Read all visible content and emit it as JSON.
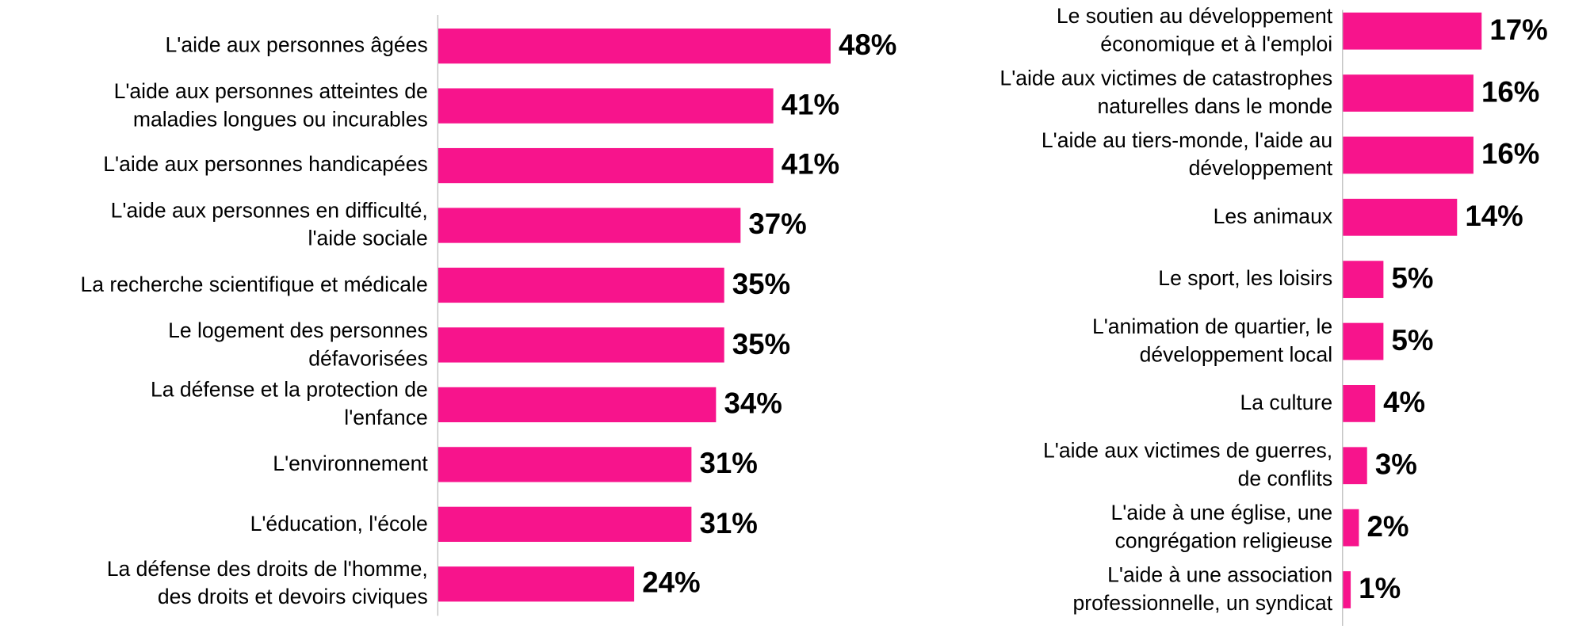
{
  "chart_data": [
    {
      "type": "hbar",
      "color": "#f7148c",
      "xlim": [
        0,
        60
      ],
      "categories": [
        "L'aide aux personnes âgées",
        "L'aide aux personnes atteintes de\nmaladies longues ou incurables",
        "L'aide aux personnes handicapées",
        "L'aide aux personnes en difficulté,\nl'aide sociale",
        "La recherche scientifique et médicale",
        "Le logement des personnes\ndéfavorisées",
        "La défense et la protection de\nl'enfance",
        "L'environnement",
        "L'éducation, l'école",
        "La défense des droits de l'homme,\ndes droits et devoirs civiques"
      ],
      "values": [
        48,
        41,
        41,
        37,
        35,
        35,
        34,
        31,
        31,
        24
      ],
      "value_labels": [
        "48%",
        "41%",
        "41%",
        "37%",
        "35%",
        "35%",
        "34%",
        "31%",
        "31%",
        "24%"
      ]
    },
    {
      "type": "hbar",
      "color": "#f7148c",
      "xlim": [
        0,
        60
      ],
      "categories": [
        "Le soutien au développement\néconomique et à l'emploi",
        "L'aide aux victimes de catastrophes\nnaturelles dans le monde",
        "L'aide au tiers-monde, l'aide au\ndéveloppement",
        "Les animaux",
        "Le sport, les loisirs",
        "L'animation de quartier, le\ndéveloppement local",
        "La culture",
        "L'aide aux victimes de guerres,\nde conflits",
        "L'aide à une église, une\ncongrégation religieuse",
        "L'aide à une association\nprofessionnelle, un syndicat"
      ],
      "values": [
        17,
        16,
        16,
        14,
        5,
        5,
        4,
        3,
        2,
        1
      ],
      "value_labels": [
        "17%",
        "16%",
        "16%",
        "14%",
        "5%",
        "5%",
        "4%",
        "3%",
        "2%",
        "1%"
      ]
    }
  ]
}
